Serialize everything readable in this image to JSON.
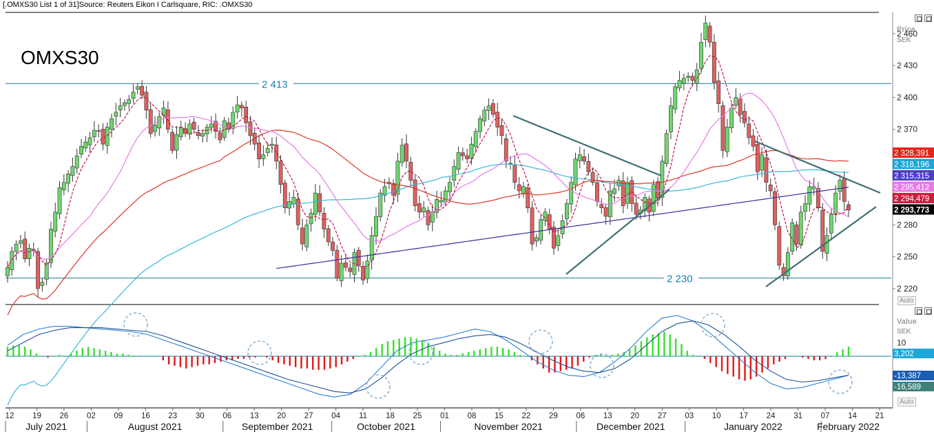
{
  "header": {
    "title_line": "[.OMXS30 List 1 of 31]Source: Reuters Eikon I Carlsquare, RIC: .OMXS30"
  },
  "chart_data": {
    "type": "candlestick",
    "title": "OMXS30",
    "price_axis": {
      "label_line1": "Price",
      "label_line2": "SEK",
      "ticks": [
        2220,
        2250,
        2280,
        2310,
        2340,
        2370,
        2400,
        2430,
        2460
      ],
      "tick_labels": [
        "2 220",
        "2 250",
        "2 280",
        "",
        "",
        "2 370",
        "2 400",
        "2 430",
        "2 460"
      ],
      "range": [
        2205,
        2480
      ]
    },
    "horizontal_levels": [
      {
        "value": 2413,
        "label": "2 413"
      },
      {
        "value": 2230,
        "label": "2 230"
      }
    ],
    "price_badges": [
      {
        "value": 2328.391,
        "label": "2 328,391",
        "color": "#e0271e"
      },
      {
        "value": 2318.196,
        "label": "2 318,196",
        "color": "#1ea7d8"
      },
      {
        "value": 2315.315,
        "label": "2 315,315",
        "color": "#4b3fc4"
      },
      {
        "value": 2295.412,
        "label": "2 295,412",
        "color": "#e879e6"
      },
      {
        "value": 2294.479,
        "label": "2 294,479",
        "color": "#cf1d3f"
      },
      {
        "value": 2293.773,
        "label": "2 293,773",
        "color": "#000000"
      }
    ],
    "x_axis": {
      "day_labels": [
        "12",
        "19",
        "26",
        "02",
        "09",
        "16",
        "23",
        "30",
        "06",
        "13",
        "20",
        "27",
        "04",
        "11",
        "18",
        "25",
        "01",
        "08",
        "15",
        "22",
        "29",
        "06",
        "13",
        "20",
        "27",
        "03",
        "10",
        "17",
        "24",
        "31",
        "07",
        "14",
        "21"
      ],
      "month_labels": [
        {
          "label": "July 2021",
          "start": 0,
          "end": 3
        },
        {
          "label": "August 2021",
          "start": 3,
          "end": 8
        },
        {
          "label": "September 2021",
          "start": 8,
          "end": 12
        },
        {
          "label": "October 2021",
          "start": 12,
          "end": 16
        },
        {
          "label": "November 2021",
          "start": 16,
          "end": 21
        },
        {
          "label": "December 2021",
          "start": 21,
          "end": 25
        },
        {
          "label": "January 2022",
          "start": 25,
          "end": 30
        },
        {
          "label": "February 2022",
          "start": 30,
          "end": 33
        }
      ]
    },
    "candles_close": [
      2240,
      2255,
      2262,
      2265,
      2248,
      2258,
      2257,
      2220,
      2226,
      2244,
      2276,
      2292,
      2315,
      2320,
      2328,
      2335,
      2345,
      2354,
      2358,
      2362,
      2369,
      2368,
      2356,
      2372,
      2380,
      2386,
      2392,
      2395,
      2398,
      2405,
      2410,
      2402,
      2388,
      2366,
      2374,
      2382,
      2390,
      2370,
      2350,
      2365,
      2372,
      2366,
      2375,
      2370,
      2364,
      2366,
      2372,
      2375,
      2368,
      2360,
      2378,
      2370,
      2386,
      2393,
      2390,
      2376,
      2364,
      2356,
      2342,
      2346,
      2352,
      2356,
      2340,
      2318,
      2296,
      2302,
      2306,
      2280,
      2262,
      2280,
      2291,
      2310,
      2292,
      2276,
      2264,
      2256,
      2230,
      2244,
      2240,
      2236,
      2254,
      2242,
      2228,
      2246,
      2270,
      2288,
      2310,
      2316,
      2320,
      2308,
      2340,
      2355,
      2340,
      2322,
      2298,
      2292,
      2296,
      2280,
      2292,
      2304,
      2303,
      2312,
      2320,
      2335,
      2348,
      2345,
      2342,
      2356,
      2368,
      2380,
      2388,
      2392,
      2384,
      2372,
      2364,
      2340,
      2338,
      2320,
      2312,
      2316,
      2296,
      2262,
      2268,
      2285,
      2292,
      2276,
      2258,
      2270,
      2284,
      2300,
      2320,
      2342,
      2346,
      2340,
      2330,
      2320,
      2302,
      2296,
      2288,
      2312,
      2314,
      2322,
      2298,
      2320,
      2300,
      2290,
      2294,
      2306,
      2292,
      2318,
      2305,
      2340,
      2366,
      2392,
      2410,
      2416,
      2418,
      2420,
      2416,
      2426,
      2452,
      2470,
      2452,
      2414,
      2394,
      2350,
      2372,
      2390,
      2400,
      2384,
      2376,
      2362,
      2354,
      2330,
      2346,
      2320,
      2312,
      2280,
      2242,
      2232,
      2254,
      2282,
      2262,
      2292,
      2300,
      2316,
      2316,
      2296,
      2255,
      2270,
      2290,
      2310,
      2322,
      2302,
      2294
    ],
    "macd_axis": {
      "label_line1": "Value",
      "label_line2": "SEK",
      "tick_label": "10",
      "range": [
        -38,
        36
      ]
    },
    "macd_badges": [
      {
        "value": 3.202,
        "label": "3,202",
        "color": "#1ea7d8"
      },
      {
        "value": -13.387,
        "label": "-13,387",
        "color": "#1a5db3"
      },
      {
        "value": -16.589,
        "label": "-16,589",
        "color": "#3f8179"
      }
    ],
    "macd_histogram": [
      7,
      8,
      8,
      7,
      5,
      2,
      0,
      -1,
      0,
      1,
      0,
      2,
      4,
      6,
      7,
      6,
      5,
      4,
      3,
      2,
      2,
      1,
      0,
      0,
      0,
      0,
      0,
      -3,
      -6,
      -7,
      -8,
      -9,
      -8,
      -7,
      -6,
      -6,
      -5,
      -4,
      -3,
      -3,
      -2,
      -2,
      -1,
      -1,
      0,
      -1,
      -3,
      -5,
      -6,
      -7,
      -8,
      -9,
      -9,
      -10,
      -10,
      -10,
      -9,
      -8,
      -6,
      -4,
      -2,
      0,
      1,
      3,
      6,
      9,
      11,
      12,
      13,
      14,
      14,
      13,
      12,
      10,
      7,
      4,
      2,
      1,
      1,
      2,
      3,
      4,
      5,
      6,
      7,
      7,
      6,
      5,
      3,
      1,
      0,
      -3,
      -6,
      -9,
      -12,
      -12,
      -11,
      -10,
      -9,
      -7,
      -4,
      -1,
      1,
      2,
      1,
      1,
      2,
      3,
      5,
      8,
      11,
      14,
      16,
      17,
      18,
      16,
      13,
      9,
      4,
      1,
      0,
      -2,
      -5,
      -8,
      -11,
      -13,
      -15,
      -17,
      -18,
      -17,
      -15,
      -12,
      -9,
      -6,
      -4,
      -2,
      0,
      0,
      -1,
      -2,
      -3,
      -3,
      -2,
      0,
      3,
      5,
      7
    ],
    "macd_line": [
      8,
      16,
      20,
      22,
      22,
      21,
      20,
      19,
      18,
      16,
      12,
      8,
      4,
      0,
      -4,
      -8,
      -12,
      -16,
      -20,
      -24,
      -28,
      -30,
      -28,
      -20,
      -8,
      4,
      10,
      12,
      14,
      17,
      20,
      18,
      12,
      4,
      -4,
      -10,
      -14,
      -15,
      -12,
      -4,
      6,
      18,
      28,
      30,
      26,
      18,
      8,
      -2,
      -12,
      -20,
      -24,
      -23,
      -20,
      -17,
      -14
    ],
    "signal_line": [
      4,
      10,
      16,
      19,
      21,
      21,
      21,
      20,
      19,
      18,
      15,
      11,
      7,
      3,
      -1,
      -5,
      -9,
      -13,
      -17,
      -20,
      -23,
      -26,
      -27,
      -24,
      -16,
      -6,
      2,
      7,
      10,
      13,
      15,
      16,
      14,
      9,
      3,
      -3,
      -8,
      -11,
      -12,
      -9,
      -2,
      8,
      18,
      24,
      26,
      23,
      16,
      7,
      -3,
      -11,
      -17,
      -19,
      -18,
      -16,
      -14
    ],
    "trendlines": [
      "upper descending from Nov 18 to Dec 23",
      "lower ascending from Nov 29 to Dec 23",
      "descending wedge top Jan 2022 to Feb 2022",
      "ascending wedge bottom Jan 24 to Feb 2022"
    ],
    "moving_averages": [
      "red 50-day",
      "cyan 100-day",
      "purple 200-day",
      "pink 20-day",
      "crimson dashed 10-day"
    ]
  },
  "controls": {
    "auto_label_top": "Auto",
    "auto_label_bottom": "Auto"
  }
}
